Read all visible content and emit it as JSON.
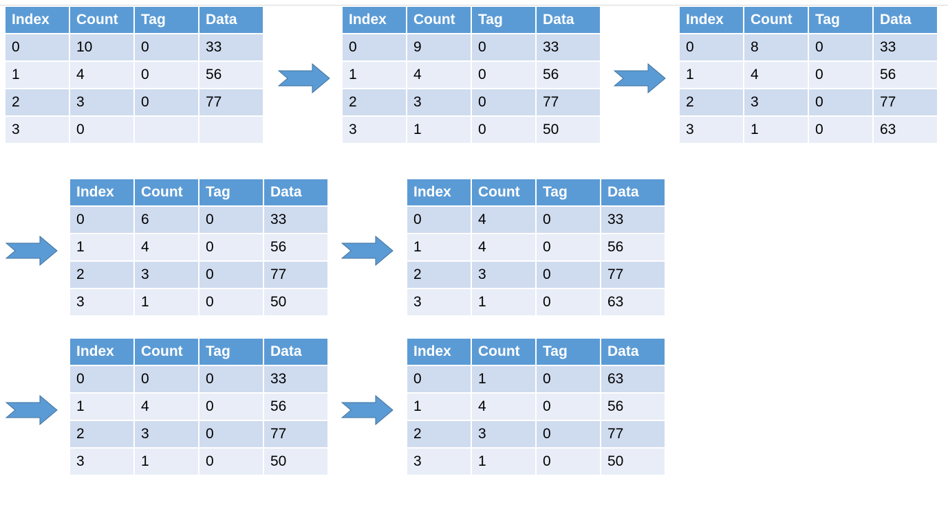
{
  "columns": [
    "Index",
    "Count",
    "Tag",
    "Data"
  ],
  "colors": {
    "header_bg": "#5b9bd5",
    "row_dark": "#cfdbee",
    "row_light": "#e8edf7",
    "arrow_fill": "#5b9bd5",
    "arrow_stroke": "#41719c"
  },
  "arrow_icon": "right-arrow-icon",
  "tables": [
    {
      "rows": [
        [
          "0",
          "10",
          "0",
          "33"
        ],
        [
          "1",
          "4",
          "0",
          "56"
        ],
        [
          "2",
          "3",
          "0",
          "77"
        ],
        [
          "3",
          "0",
          "",
          ""
        ]
      ]
    },
    {
      "rows": [
        [
          "0",
          "9",
          "0",
          "33"
        ],
        [
          "1",
          "4",
          "0",
          "56"
        ],
        [
          "2",
          "3",
          "0",
          "77"
        ],
        [
          "3",
          "1",
          "0",
          "50"
        ]
      ]
    },
    {
      "rows": [
        [
          "0",
          "8",
          "0",
          "33"
        ],
        [
          "1",
          "4",
          "0",
          "56"
        ],
        [
          "2",
          "3",
          "0",
          "77"
        ],
        [
          "3",
          "1",
          "0",
          "63"
        ]
      ]
    },
    {
      "rows": [
        [
          "0",
          "6",
          "0",
          "33"
        ],
        [
          "1",
          "4",
          "0",
          "56"
        ],
        [
          "2",
          "3",
          "0",
          "77"
        ],
        [
          "3",
          "1",
          "0",
          "50"
        ]
      ]
    },
    {
      "rows": [
        [
          "0",
          "4",
          "0",
          "33"
        ],
        [
          "1",
          "4",
          "0",
          "56"
        ],
        [
          "2",
          "3",
          "0",
          "77"
        ],
        [
          "3",
          "1",
          "0",
          "63"
        ]
      ]
    },
    {
      "rows": [
        [
          "0",
          "0",
          "0",
          "33"
        ],
        [
          "1",
          "4",
          "0",
          "56"
        ],
        [
          "2",
          "3",
          "0",
          "77"
        ],
        [
          "3",
          "1",
          "0",
          "50"
        ]
      ]
    },
    {
      "rows": [
        [
          "0",
          "1",
          "0",
          "63"
        ],
        [
          "1",
          "4",
          "0",
          "56"
        ],
        [
          "2",
          "3",
          "0",
          "77"
        ],
        [
          "3",
          "1",
          "0",
          "50"
        ]
      ]
    }
  ]
}
